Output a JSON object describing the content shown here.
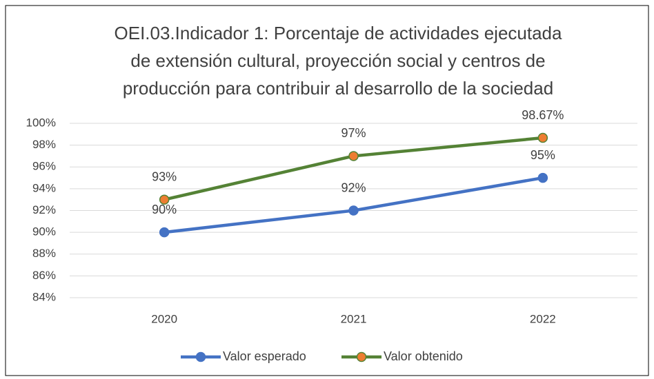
{
  "chart_data": {
    "type": "line",
    "title": [
      "OEI.03.Indicador 1: Porcentaje de actividades ejecutada",
      "de extensión cultural, proyección social y centros de",
      "producción para contribuir al desarrollo de la sociedad"
    ],
    "categories": [
      "2020",
      "2021",
      "2022"
    ],
    "series": [
      {
        "name": "Valor esperado",
        "color": "#4472c4",
        "marker_color": "#4472c4",
        "values": [
          90,
          92,
          95
        ],
        "value_labels": [
          "90%",
          "92%",
          "95%"
        ]
      },
      {
        "name": "Valor obtenido",
        "color": "#548235",
        "marker_color": "#ed7d31",
        "values": [
          93,
          97,
          98.67
        ],
        "value_labels": [
          "93%",
          "97%",
          "98.67%"
        ]
      }
    ],
    "ylim": [
      84,
      100
    ],
    "yticks": [
      {
        "value": 84,
        "label": "84%"
      },
      {
        "value": 86,
        "label": "86%"
      },
      {
        "value": 88,
        "label": "88%"
      },
      {
        "value": 90,
        "label": "90%"
      },
      {
        "value": 92,
        "label": "92%"
      },
      {
        "value": 94,
        "label": "94%"
      },
      {
        "value": 96,
        "label": "96%"
      },
      {
        "value": 98,
        "label": "98%"
      },
      {
        "value": 100,
        "label": "100%"
      }
    ],
    "grid": true,
    "legend": "bottom"
  }
}
